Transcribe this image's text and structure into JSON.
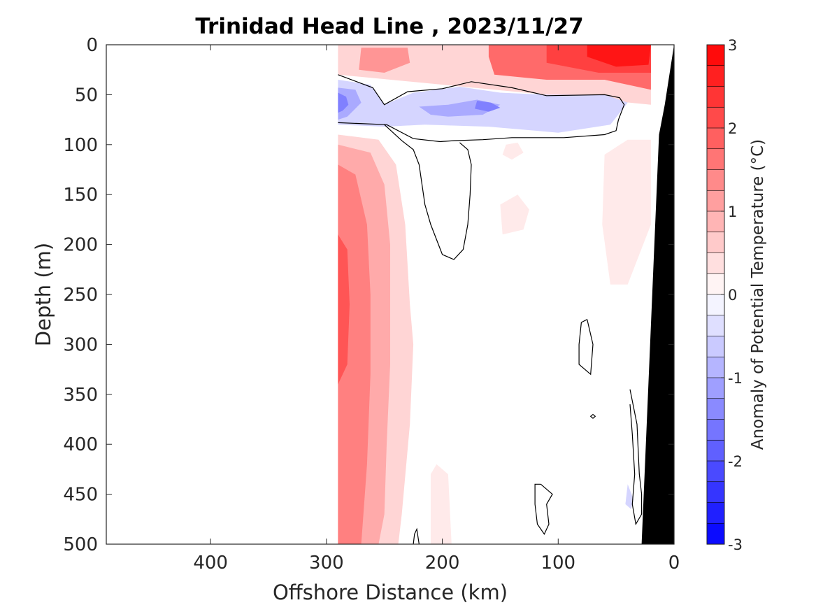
{
  "chart_data": {
    "type": "heatmap",
    "title": "Trinidad Head Line , 2023/11/27",
    "xlabel": "Offshore Distance (km)",
    "ylabel": "Depth (m)",
    "xlim": [
      490,
      0
    ],
    "ylim": [
      500,
      0
    ],
    "x_reversed": true,
    "y_reversed": true,
    "x_ticks": [
      "400",
      "300",
      "200",
      "100",
      "0"
    ],
    "x_tick_values": [
      400,
      300,
      200,
      100,
      0
    ],
    "y_ticks": [
      "0",
      "50",
      "100",
      "150",
      "200",
      "250",
      "300",
      "350",
      "400",
      "450",
      "500"
    ],
    "y_tick_values": [
      0,
      50,
      100,
      150,
      200,
      250,
      300,
      350,
      400,
      450,
      500
    ],
    "colorbar": {
      "label": "Anomaly of Potential Temperature (°C)",
      "range": [
        -3,
        3
      ],
      "step": 0.25,
      "ticks": [
        "3",
        "2",
        "1",
        "0",
        "-1",
        "-2",
        "-3"
      ],
      "tick_values": [
        3,
        2,
        1,
        0,
        -1,
        -2,
        -3
      ],
      "color_max": "#ff0000",
      "color_mid": "#ffffff",
      "color_min": "#0000ff"
    },
    "data_extent_km": [
      290,
      20
    ],
    "zero_contour_color": "#000000",
    "bathymetry_color": "#000000",
    "bathymetry": [
      [
        0,
        0
      ],
      [
        8,
        60
      ],
      [
        13,
        90
      ],
      [
        28,
        500
      ],
      [
        0,
        500
      ]
    ],
    "regions": [
      {
        "anomaly": 0.5,
        "polygon": [
          [
            290,
            0
          ],
          [
            20,
            0
          ],
          [
            20,
            60
          ],
          [
            290,
            30
          ]
        ]
      },
      {
        "anomaly": 1.25,
        "polygon": [
          [
            270,
            3
          ],
          [
            230,
            3
          ],
          [
            228,
            18
          ],
          [
            250,
            28
          ],
          [
            272,
            25
          ]
        ]
      },
      {
        "anomaly": 1.75,
        "polygon": [
          [
            160,
            0
          ],
          [
            20,
            0
          ],
          [
            20,
            45
          ],
          [
            60,
            35
          ],
          [
            110,
            35
          ],
          [
            155,
            30
          ],
          [
            160,
            12
          ]
        ]
      },
      {
        "anomaly": 2.25,
        "polygon": [
          [
            110,
            0
          ],
          [
            20,
            0
          ],
          [
            20,
            28
          ],
          [
            65,
            28
          ],
          [
            110,
            18
          ]
        ]
      },
      {
        "anomaly": 2.75,
        "polygon": [
          [
            75,
            0
          ],
          [
            20,
            0
          ],
          [
            22,
            20
          ],
          [
            50,
            22
          ],
          [
            75,
            12
          ]
        ]
      },
      {
        "anomaly": -0.5,
        "polygon": [
          [
            290,
            35
          ],
          [
            262,
            40
          ],
          [
            250,
            60
          ],
          [
            225,
            48
          ],
          [
            185,
            42
          ],
          [
            150,
            48
          ],
          [
            110,
            50
          ],
          [
            60,
            50
          ],
          [
            40,
            58
          ],
          [
            55,
            80
          ],
          [
            100,
            88
          ],
          [
            160,
            82
          ],
          [
            215,
            80
          ],
          [
            250,
            82
          ],
          [
            290,
            80
          ]
        ]
      },
      {
        "anomaly": -1.0,
        "polygon": [
          [
            290,
            43
          ],
          [
            275,
            45
          ],
          [
            270,
            58
          ],
          [
            282,
            72
          ],
          [
            290,
            75
          ]
        ]
      },
      {
        "anomaly": -1.0,
        "polygon": [
          [
            220,
            62
          ],
          [
            195,
            60
          ],
          [
            170,
            55
          ],
          [
            150,
            60
          ],
          [
            165,
            70
          ],
          [
            195,
            72
          ],
          [
            210,
            70
          ]
        ]
      },
      {
        "anomaly": -1.5,
        "polygon": [
          [
            290,
            48
          ],
          [
            283,
            52
          ],
          [
            281,
            60
          ],
          [
            286,
            66
          ],
          [
            290,
            68
          ]
        ]
      },
      {
        "anomaly": -1.5,
        "polygon": [
          [
            170,
            56
          ],
          [
            158,
            58
          ],
          [
            150,
            63
          ],
          [
            160,
            67
          ],
          [
            172,
            64
          ]
        ]
      },
      {
        "anomaly": 0.5,
        "polygon": [
          [
            290,
            90
          ],
          [
            255,
            95
          ],
          [
            240,
            120
          ],
          [
            232,
            180
          ],
          [
            228,
            260
          ],
          [
            225,
            300
          ],
          [
            228,
            380
          ],
          [
            235,
            470
          ],
          [
            238,
            500
          ],
          [
            290,
            500
          ]
        ]
      },
      {
        "anomaly": 1.0,
        "polygon": [
          [
            290,
            100
          ],
          [
            262,
            108
          ],
          [
            250,
            140
          ],
          [
            245,
            200
          ],
          [
            245,
            260
          ],
          [
            245,
            320
          ],
          [
            248,
            400
          ],
          [
            250,
            470
          ],
          [
            255,
            500
          ],
          [
            290,
            500
          ]
        ]
      },
      {
        "anomaly": 1.5,
        "polygon": [
          [
            290,
            120
          ],
          [
            275,
            130
          ],
          [
            265,
            180
          ],
          [
            262,
            250
          ],
          [
            262,
            330
          ],
          [
            265,
            420
          ],
          [
            270,
            500
          ],
          [
            290,
            500
          ]
        ]
      },
      {
        "anomaly": 2.0,
        "polygon": [
          [
            290,
            190
          ],
          [
            282,
            205
          ],
          [
            280,
            260
          ],
          [
            282,
            320
          ],
          [
            290,
            340
          ]
        ]
      },
      {
        "anomaly": 0.25,
        "polygon": [
          [
            60,
            110
          ],
          [
            40,
            95
          ],
          [
            20,
            95
          ],
          [
            20,
            180
          ],
          [
            40,
            240
          ],
          [
            55,
            240
          ],
          [
            62,
            180
          ]
        ]
      },
      {
        "anomaly": 0.25,
        "polygon": [
          [
            150,
            160
          ],
          [
            135,
            150
          ],
          [
            125,
            165
          ],
          [
            130,
            185
          ],
          [
            148,
            190
          ]
        ]
      },
      {
        "anomaly": 0.25,
        "polygon": [
          [
            145,
            100
          ],
          [
            135,
            98
          ],
          [
            130,
            108
          ],
          [
            140,
            115
          ],
          [
            148,
            110
          ]
        ]
      },
      {
        "anomaly": 0.25,
        "polygon": [
          [
            205,
            420
          ],
          [
            195,
            430
          ],
          [
            192,
            500
          ],
          [
            210,
            500
          ],
          [
            210,
            430
          ]
        ]
      },
      {
        "anomaly": -0.5,
        "polygon": [
          [
            40,
            440
          ],
          [
            35,
            455
          ],
          [
            37,
            465
          ],
          [
            42,
            460
          ]
        ]
      }
    ],
    "zero_contours": [
      [
        [
          290,
          30
        ],
        [
          260,
          43
        ],
        [
          250,
          60
        ],
        [
          230,
          47
        ],
        [
          200,
          44
        ],
        [
          175,
          37
        ],
        [
          140,
          43
        ],
        [
          110,
          51
        ],
        [
          60,
          50
        ],
        [
          47,
          53
        ],
        [
          43,
          60
        ],
        [
          48,
          75
        ],
        [
          50,
          86
        ],
        [
          60,
          90
        ],
        [
          95,
          93
        ],
        [
          140,
          93
        ],
        [
          165,
          95
        ],
        [
          190,
          96
        ],
        [
          202,
          97
        ],
        [
          225,
          94
        ],
        [
          248,
          80
        ],
        [
          290,
          78
        ]
      ],
      [
        [
          250,
          80
        ],
        [
          235,
          96
        ],
        [
          225,
          105
        ],
        [
          220,
          120
        ],
        [
          215,
          160
        ],
        [
          210,
          180
        ],
        [
          200,
          210
        ],
        [
          190,
          215
        ],
        [
          182,
          205
        ],
        [
          178,
          180
        ],
        [
          176,
          150
        ],
        [
          175,
          120
        ],
        [
          178,
          105
        ],
        [
          185,
          98
        ]
      ],
      [
        [
          75,
          275
        ],
        [
          70,
          300
        ],
        [
          72,
          330
        ],
        [
          82,
          320
        ],
        [
          82,
          300
        ],
        [
          80,
          278
        ],
        [
          75,
          275
        ]
      ],
      [
        [
          70,
          370
        ],
        [
          68,
          372
        ],
        [
          70,
          374
        ],
        [
          72,
          372
        ],
        [
          70,
          370
        ]
      ],
      [
        [
          38,
          345
        ],
        [
          32,
          380
        ],
        [
          30,
          430
        ],
        [
          28,
          450
        ],
        [
          28,
          470
        ],
        [
          33,
          480
        ],
        [
          36,
          460
        ],
        [
          34,
          430
        ],
        [
          36,
          390
        ],
        [
          38,
          360
        ]
      ],
      [
        [
          115,
          440
        ],
        [
          105,
          450
        ],
        [
          110,
          460
        ],
        [
          108,
          480
        ],
        [
          112,
          490
        ],
        [
          118,
          480
        ],
        [
          120,
          460
        ],
        [
          120,
          440
        ],
        [
          115,
          440
        ]
      ],
      [
        [
          220,
          500
        ],
        [
          222,
          485
        ],
        [
          224,
          490
        ],
        [
          225,
          500
        ]
      ]
    ]
  }
}
